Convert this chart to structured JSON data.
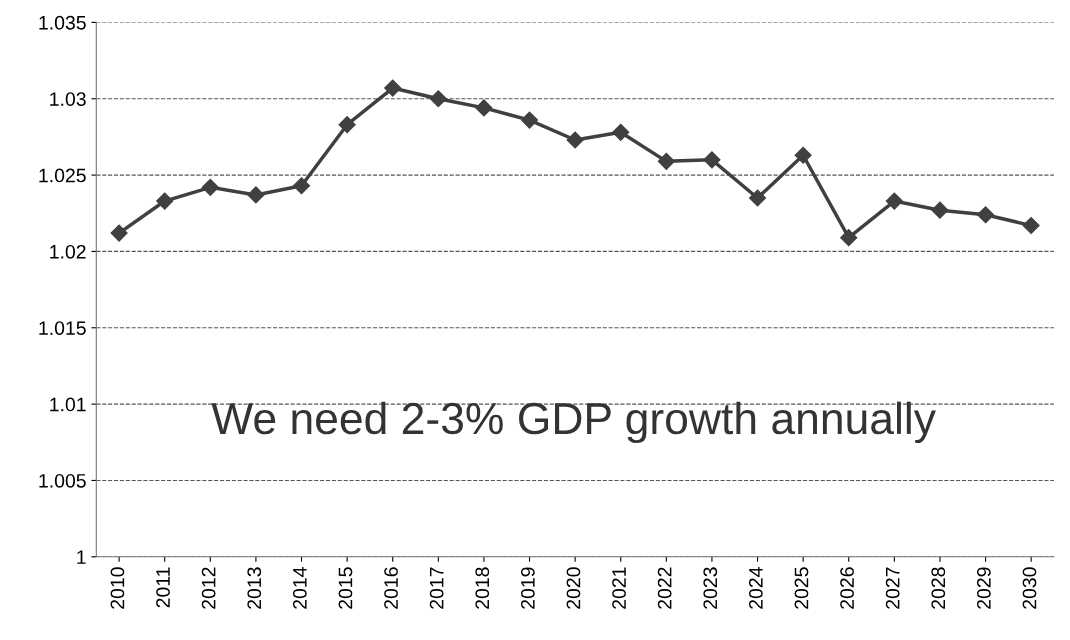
{
  "chart_data": {
    "type": "line",
    "categories": [
      "2010",
      "2011",
      "2012",
      "2013",
      "2014",
      "2015",
      "2016",
      "2017",
      "2018",
      "2019",
      "2020",
      "2021",
      "2022",
      "2023",
      "2024",
      "2025",
      "2026",
      "2027",
      "2028",
      "2029",
      "2030"
    ],
    "series": [
      {
        "color": "#404040",
        "values": [
          1.0212,
          1.0233,
          1.0242,
          1.0237,
          1.0243,
          1.0283,
          1.0307,
          1.03,
          1.0294,
          1.0286,
          1.0273,
          1.0278,
          1.0259,
          1.026,
          1.0235,
          1.0263,
          1.0209,
          1.0233,
          1.0227,
          1.0224,
          1.0217
        ]
      }
    ],
    "ylim": [
      1,
      1.035
    ],
    "yticks": [
      1,
      1.005,
      1.01,
      1.015,
      1.02,
      1.025,
      1.03,
      1.035
    ],
    "grid": "y",
    "marker": "diamond",
    "line_style": "solid",
    "annotations": [
      "We need 2-3% GDP growth annually"
    ]
  }
}
